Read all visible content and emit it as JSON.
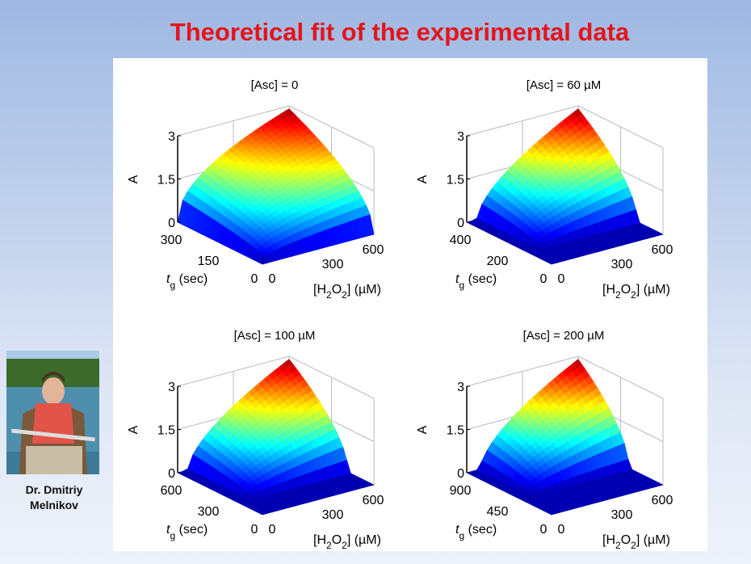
{
  "slide": {
    "title": "Theoretical fit of the experimental data",
    "presenter": {
      "line1": "Dr. Dmitriy",
      "line2": "Melnikov"
    }
  },
  "colors": {
    "title": "#e3151c",
    "colormap": "jet"
  },
  "chart_data": [
    {
      "type": "surface",
      "title": "[Asc] = 0",
      "xlabel": "[H2O2] (µM)",
      "ylabel": "t_g (sec)",
      "zlabel": "A",
      "xticks": [
        "0",
        "300",
        "600"
      ],
      "yticks": [
        "0",
        "150",
        "300"
      ],
      "zticks": [
        "0",
        "1.5",
        "3"
      ],
      "xlim": [
        0,
        600
      ],
      "ylim": [
        0,
        300
      ],
      "zlim": [
        0,
        3
      ],
      "zmax": 2.9,
      "lag": 0
    },
    {
      "type": "surface",
      "title": "[Asc] = 60 µM",
      "xlabel": "[H2O2] (µM)",
      "ylabel": "t_g (sec)",
      "zlabel": "A",
      "xticks": [
        "0",
        "300",
        "600"
      ],
      "yticks": [
        "0",
        "200",
        "400"
      ],
      "zticks": [
        "0",
        "1.5",
        "3"
      ],
      "xlim": [
        0,
        600
      ],
      "ylim": [
        0,
        400
      ],
      "zlim": [
        0,
        3
      ],
      "zmax": 2.9,
      "lag": 0.3
    },
    {
      "type": "surface",
      "title": "[Asc] = 100 µM",
      "xlabel": "[H2O2] (µM)",
      "ylabel": "t_g (sec)",
      "zlabel": "A",
      "xticks": [
        "0",
        "300",
        "600"
      ],
      "yticks": [
        "0",
        "300",
        "600"
      ],
      "zticks": [
        "0",
        "1.5",
        "3"
      ],
      "xlim": [
        0,
        600
      ],
      "ylim": [
        0,
        600
      ],
      "zlim": [
        0,
        3
      ],
      "zmax": 2.9,
      "lag": 0.3
    },
    {
      "type": "surface",
      "title": "[Asc] = 200 µM",
      "xlabel": "[H2O2] (µM)",
      "ylabel": "t_g (sec)",
      "zlabel": "A",
      "xticks": [
        "0",
        "300",
        "600"
      ],
      "yticks": [
        "0",
        "450",
        "900"
      ],
      "zticks": [
        "0",
        "1.5",
        "3"
      ],
      "xlim": [
        0,
        600
      ],
      "ylim": [
        0,
        900
      ],
      "zlim": [
        0,
        3
      ],
      "zmax": 2.9,
      "lag": 0.4
    }
  ]
}
